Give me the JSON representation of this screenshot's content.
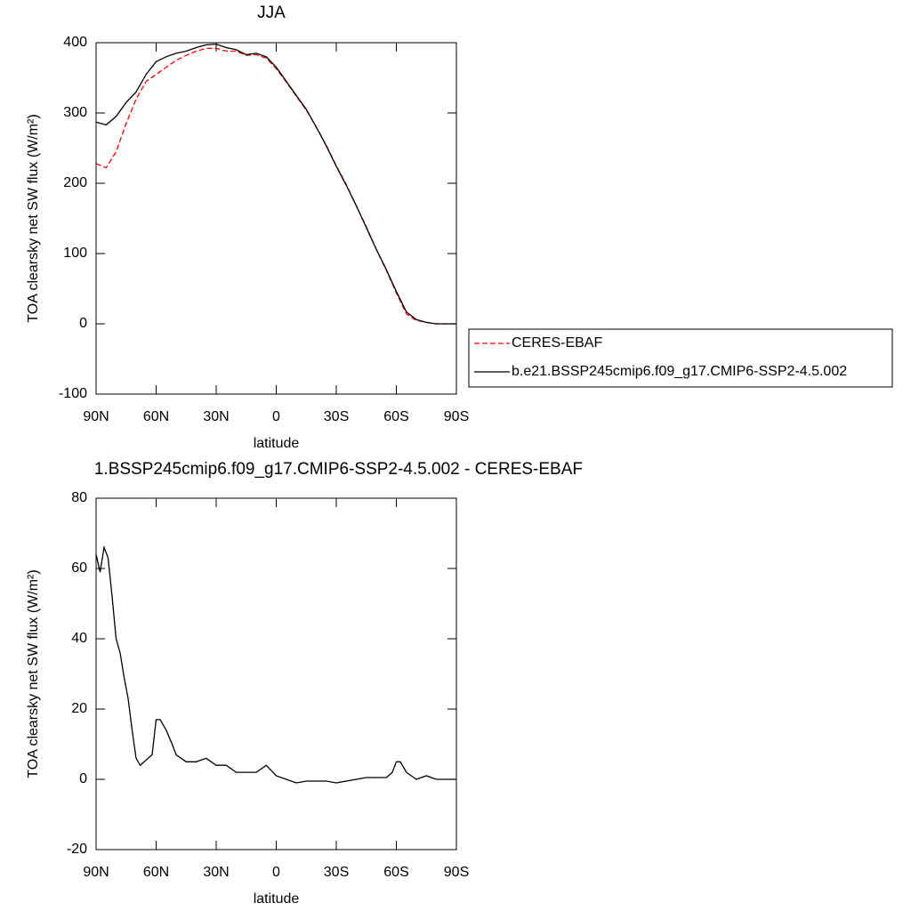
{
  "chart_data": [
    {
      "type": "line",
      "title": "JJA",
      "xlabel": "latitude",
      "ylabel": "TOA clearsky net SW flux (W/m²)",
      "x": [
        90,
        85,
        80,
        75,
        70,
        65,
        60,
        55,
        50,
        45,
        40,
        35,
        30,
        25,
        20,
        15,
        10,
        5,
        0,
        -5,
        -10,
        -15,
        -20,
        -25,
        -30,
        -35,
        -40,
        -45,
        -50,
        -55,
        -60,
        -65,
        -70,
        -75,
        -80,
        -85,
        -90
      ],
      "series": [
        {
          "name": "CERES-EBAF",
          "color": "#ff0000",
          "dashed": true,
          "values": [
            228,
            222,
            245,
            285,
            320,
            345,
            355,
            365,
            375,
            382,
            388,
            392,
            392,
            388,
            388,
            382,
            383,
            378,
            363,
            344,
            324,
            304,
            280,
            254,
            225,
            198,
            168,
            138,
            106,
            76,
            44,
            14,
            5,
            2,
            0,
            0,
            0
          ]
        },
        {
          "name": "b.e21.BSSP245cmip6.f09_g17.CMIP6-SSP2-4.5.002",
          "color": "#000000",
          "dashed": false,
          "values": [
            287,
            283,
            295,
            315,
            330,
            355,
            373,
            380,
            385,
            388,
            393,
            397,
            398,
            393,
            390,
            383,
            385,
            380,
            365,
            345,
            325,
            305,
            280,
            253,
            224,
            197,
            168,
            137,
            106,
            77,
            46,
            17,
            6,
            2,
            0,
            0,
            0
          ]
        }
      ],
      "xlim": [
        90,
        -90
      ],
      "xticks": [
        {
          "value": 90,
          "label": "90N"
        },
        {
          "value": 60,
          "label": "60N"
        },
        {
          "value": 30,
          "label": "30N"
        },
        0,
        {
          "value": -30,
          "label": "30S"
        },
        {
          "value": -60,
          "label": "60S"
        },
        {
          "value": -90,
          "label": "90S"
        }
      ],
      "ylim": [
        -100,
        400
      ],
      "yticks": [
        -100,
        0,
        100,
        200,
        300,
        400
      ],
      "legend": "right"
    },
    {
      "type": "line",
      "title": "1.BSSP245cmip6.f09_g17.CMIP6-SSP2-4.5.002 - CERES-EBAF",
      "xlabel": "latitude",
      "ylabel": "TOA clearsky net SW flux (W/m²)",
      "x": [
        90,
        88,
        86,
        84,
        82,
        80,
        78,
        76,
        74,
        72,
        70,
        68,
        66,
        64,
        62,
        60,
        58,
        55,
        52,
        50,
        45,
        40,
        35,
        30,
        25,
        20,
        15,
        10,
        5,
        0,
        -5,
        -10,
        -15,
        -20,
        -25,
        -30,
        -35,
        -40,
        -45,
        -50,
        -55,
        -58,
        -60,
        -62,
        -65,
        -70,
        -75,
        -80,
        -85,
        -90
      ],
      "series": [
        {
          "color": "#000000",
          "dashed": false,
          "values": [
            64,
            59,
            66,
            63,
            52,
            40,
            36,
            29,
            23,
            14,
            6,
            4,
            5,
            6,
            7,
            17,
            17,
            14,
            10,
            7,
            5,
            5,
            6,
            4,
            4,
            2,
            2,
            2,
            4,
            1,
            0,
            -1,
            -0.5,
            -0.5,
            -0.5,
            -1,
            -0.5,
            0,
            0.5,
            0.5,
            0.5,
            2,
            5,
            5,
            2,
            0,
            1,
            0,
            0,
            0
          ]
        }
      ],
      "xlim": [
        90,
        -90
      ],
      "xticks": [
        {
          "value": 90,
          "label": "90N"
        },
        {
          "value": 60,
          "label": "60N"
        },
        {
          "value": 30,
          "label": "30N"
        },
        0,
        {
          "value": -30,
          "label": "30S"
        },
        {
          "value": -60,
          "label": "60S"
        },
        {
          "value": -90,
          "label": "90S"
        }
      ],
      "ylim": [
        -20,
        80
      ],
      "yticks": [
        -20,
        0,
        20,
        40,
        60,
        80
      ]
    }
  ]
}
